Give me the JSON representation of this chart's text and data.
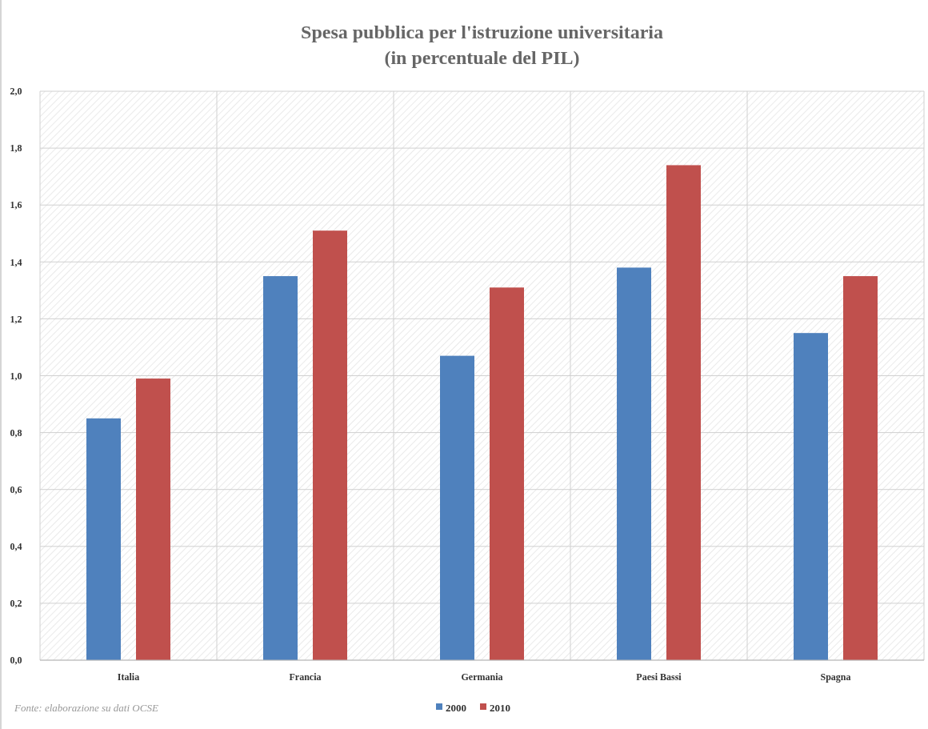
{
  "chart_data": {
    "type": "bar",
    "title": "Spesa pubblica per l'istruzione universitaria\n(in percentuale del PIL)",
    "categories": [
      "Italia",
      "Francia",
      "Germania",
      "Paesi Bassi",
      "Spagna"
    ],
    "series": [
      {
        "name": "2000",
        "color": "#4f81bd",
        "values": [
          0.85,
          1.35,
          1.07,
          1.38,
          1.15
        ]
      },
      {
        "name": "2010",
        "color": "#c0504d",
        "values": [
          0.99,
          1.51,
          1.31,
          1.74,
          1.35
        ]
      }
    ],
    "ylim": [
      0,
      2
    ],
    "yticks": [
      {
        "value": 0,
        "label": "0,0"
      },
      {
        "value": 0.2,
        "label": "0,2"
      },
      {
        "value": 0.4,
        "label": "0,4"
      },
      {
        "value": 0.6,
        "label": "0,6"
      },
      {
        "value": 0.8,
        "label": "0,8"
      },
      {
        "value": 1,
        "label": "1,0"
      },
      {
        "value": 1.2,
        "label": "1,2"
      },
      {
        "value": 1.4,
        "label": "1,4"
      },
      {
        "value": 1.6,
        "label": "1,6"
      },
      {
        "value": 1.8,
        "label": "1,8"
      },
      {
        "value": 2,
        "label": "2,0"
      }
    ],
    "grid": true,
    "legend": "bottom",
    "annotations": [
      "Fonte: elaborazione su dati OCSE"
    ]
  }
}
